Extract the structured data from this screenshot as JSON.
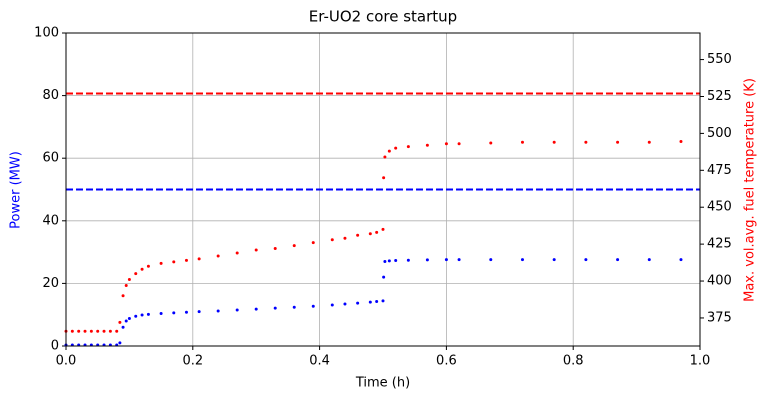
{
  "chart_data": {
    "type": "scatter",
    "title": "Er-UO2 core startup",
    "xlabel": "Time (h)",
    "ylabel": "Power (MW)",
    "y2label": "Max. vol.avg. fuel temperature (K)",
    "x": [
      0,
      0.01,
      0.02,
      0.03,
      0.04,
      0.05,
      0.06,
      0.07,
      0.08,
      0.085,
      0.09,
      0.095,
      0.1,
      0.11,
      0.12,
      0.13,
      0.15,
      0.17,
      0.19,
      0.21,
      0.24,
      0.27,
      0.3,
      0.33,
      0.36,
      0.39,
      0.42,
      0.44,
      0.46,
      0.48,
      0.49,
      0.5,
      0.501,
      0.503,
      0.51,
      0.52,
      0.54,
      0.57,
      0.6,
      0.62,
      0.67,
      0.72,
      0.77,
      0.82,
      0.87,
      0.92,
      0.97
    ],
    "series": [
      {
        "color": "#0000ff",
        "values": [
          0.3,
          0.3,
          0.3,
          0.3,
          0.3,
          0.3,
          0.3,
          0.3,
          0.3,
          1,
          6,
          8,
          8.8,
          9.5,
          9.9,
          10.1,
          10.4,
          10.6,
          10.8,
          11,
          11.2,
          11.5,
          11.8,
          12.1,
          12.4,
          12.7,
          13.1,
          13.4,
          13.7,
          14,
          14.2,
          14.4,
          22,
          27,
          27.2,
          27.3,
          27.4,
          27.5,
          27.6,
          27.6,
          27.6,
          27.6,
          27.6,
          27.6,
          27.6,
          27.6,
          27.6
        ]
      },
      {
        "color": "#ff0000",
        "axis": "y2",
        "values": [
          366,
          366,
          366,
          366,
          366,
          366,
          366,
          366,
          366,
          372,
          390,
          397,
          401,
          405,
          408,
          410,
          412,
          413,
          414,
          415,
          417,
          419,
          421,
          422,
          424,
          426,
          428,
          429,
          431,
          432,
          433,
          435,
          470,
          484,
          488,
          490,
          491,
          492,
          493,
          493,
          493.5,
          494,
          494,
          494,
          494,
          494,
          494.5
        ]
      }
    ],
    "hlines": [
      {
        "y": 50,
        "color": "#0000ff"
      },
      {
        "y": 527,
        "axis": "y2",
        "color": "#ff0000"
      }
    ],
    "xlim": [
      0,
      1
    ],
    "xticks": [
      {
        "value": 0,
        "label": "0.0"
      },
      0.2,
      0.4,
      0.6,
      0.8,
      {
        "value": 1,
        "label": "1.0"
      }
    ],
    "ylim": [
      0,
      100
    ],
    "yticks": [
      0,
      20,
      40,
      60,
      80,
      100
    ],
    "y2lim": [
      356,
      568
    ],
    "y2ticks": [
      375,
      400,
      425,
      450,
      475,
      500,
      525,
      550
    ],
    "grid": true
  }
}
